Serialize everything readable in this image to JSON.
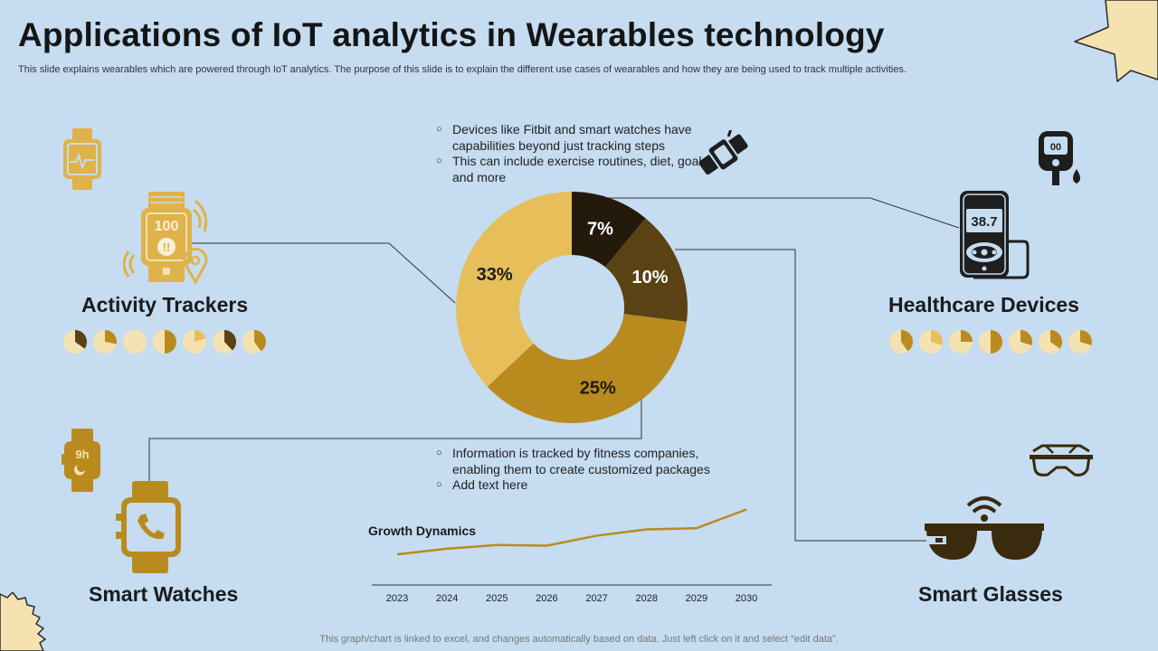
{
  "slide": {
    "title": "Applications of IoT analytics in Wearables technology",
    "subtitle": "This slide explains wearables which are powered through IoT analytics. The purpose of this slide is to explain the different use cases of wearables and how they are being used to track multiple activities.",
    "footer": "This graph/chart is linked to excel,  and changes automatically based on data. Just left click on it and select “edit data”."
  },
  "categories": {
    "activity_trackers": "Activity Trackers",
    "healthcare_devices": "Healthcare Devices",
    "smart_watches": "Smart Watches",
    "smart_glasses": "Smart Glasses"
  },
  "notes": {
    "top": [
      "Devices like Fitbit and smart watches have capabilities beyond just tracking steps",
      "This can include exercise routines, diet, goals, and more"
    ],
    "bottom": [
      "Information is tracked by fitness companies, enabling them to create customized packages",
      "Add text here"
    ]
  },
  "icons": {
    "healthcare_display": "38.7",
    "activity_display": "100",
    "watch_display": "9h"
  },
  "colors": {
    "background": "#c5dcf1",
    "dark": "#241a0c",
    "brown": "#5a4214",
    "gold": "#b98b1e",
    "light_gold": "#e6bf5a"
  },
  "chart_data": [
    {
      "type": "pie",
      "variant": "donut",
      "labels": [
        "7%",
        "10%",
        "25%",
        "33%"
      ],
      "values": [
        7,
        10,
        25,
        33
      ],
      "colors": [
        "#241a0c",
        "#5a4214",
        "#b98b1e",
        "#e6bf5a"
      ]
    },
    {
      "type": "line",
      "title": "Growth Dynamics",
      "x": [
        "2023",
        "2024",
        "2025",
        "2026",
        "2027",
        "2028",
        "2029",
        "2030"
      ],
      "series": [
        {
          "values": [
            1.0,
            1.9,
            2.5,
            2.4,
            4.0,
            5.0,
            5.2,
            8.2
          ]
        }
      ],
      "ylim": [
        0,
        9
      ],
      "color": "#b98b1e"
    }
  ]
}
